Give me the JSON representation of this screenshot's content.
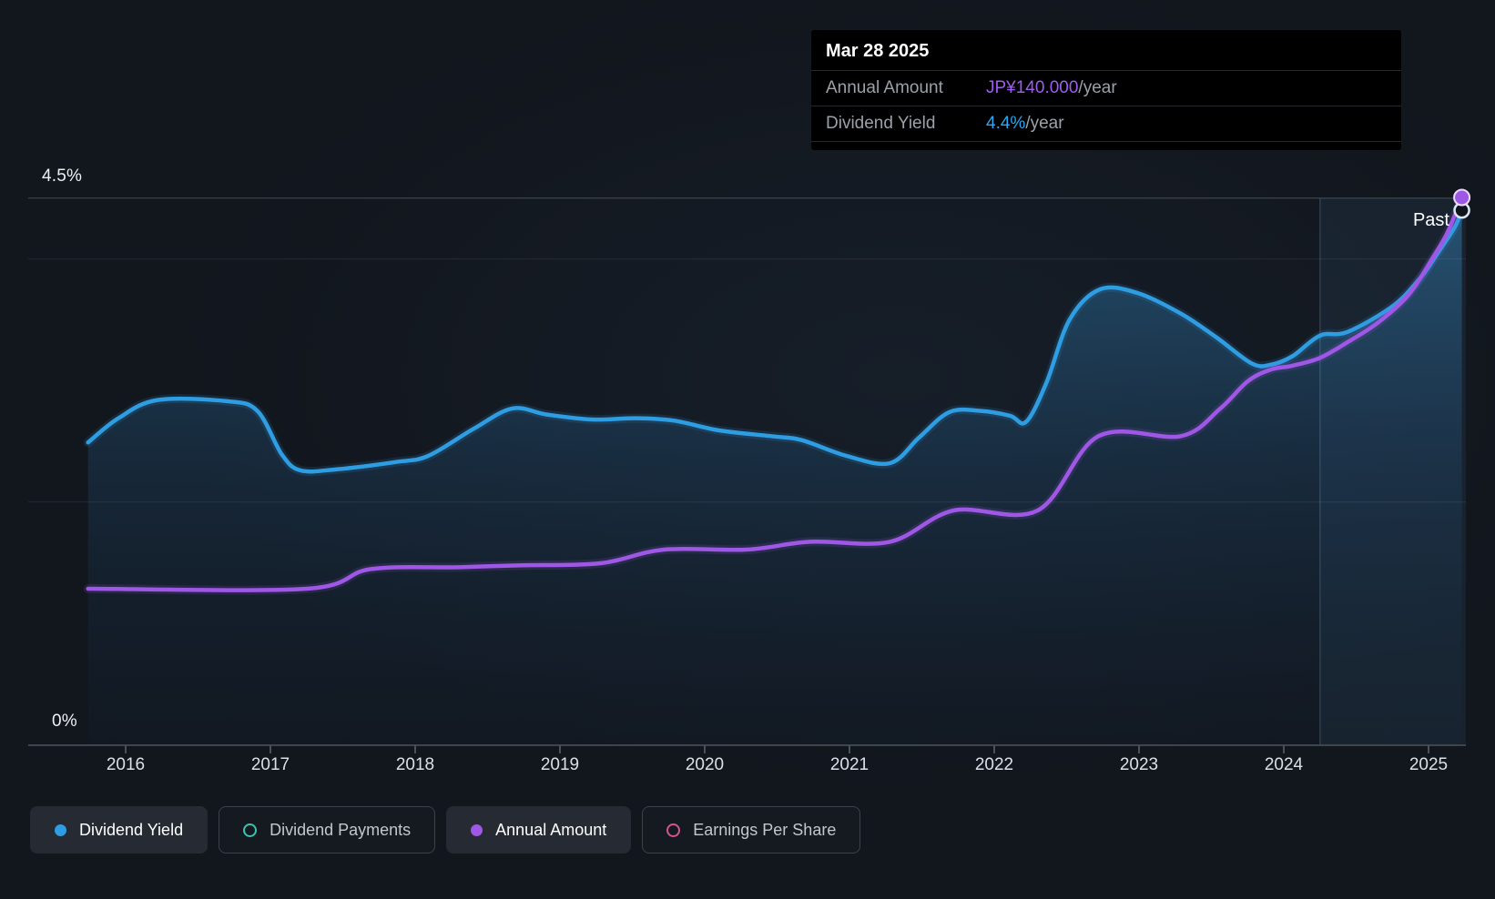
{
  "tooltip": {
    "date": "Mar 28 2025",
    "rows": [
      {
        "label": "Annual Amount",
        "value": "JP¥140.000",
        "suffix": "/year",
        "color": "#a05bf0"
      },
      {
        "label": "Dividend Yield",
        "value": "4.4%",
        "suffix": "/year",
        "color": "#2aa7f5"
      }
    ]
  },
  "chart_data": {
    "type": "area",
    "x_ticks": [
      "2016",
      "2017",
      "2018",
      "2019",
      "2020",
      "2021",
      "2022",
      "2023",
      "2024",
      "2025"
    ],
    "x_range": [
      2015.74,
      2025.28
    ],
    "y_axis": {
      "top_label": "4.5%",
      "zero_label": "0%",
      "unit": "%",
      "max_pct": 4.53,
      "gridlines_pct": [
        4.5,
        4.0,
        2.0,
        0
      ]
    },
    "past_label": "Past",
    "past_band_start_year": 2024.25,
    "series": [
      {
        "name": "Dividend Yield",
        "unit": "percent",
        "color": "#2f9de2",
        "points": [
          [
            2015.74,
            2.49
          ],
          [
            2015.95,
            2.69
          ],
          [
            2016.22,
            2.84
          ],
          [
            2016.7,
            2.83
          ],
          [
            2016.91,
            2.75
          ],
          [
            2017.08,
            2.39
          ],
          [
            2017.21,
            2.26
          ],
          [
            2017.46,
            2.27
          ],
          [
            2017.87,
            2.33
          ],
          [
            2018.09,
            2.38
          ],
          [
            2018.4,
            2.6
          ],
          [
            2018.67,
            2.77
          ],
          [
            2018.91,
            2.72
          ],
          [
            2019.22,
            2.68
          ],
          [
            2019.53,
            2.69
          ],
          [
            2019.79,
            2.67
          ],
          [
            2020.1,
            2.59
          ],
          [
            2020.48,
            2.54
          ],
          [
            2020.67,
            2.51
          ],
          [
            2020.98,
            2.38
          ],
          [
            2021.28,
            2.32
          ],
          [
            2021.48,
            2.53
          ],
          [
            2021.69,
            2.74
          ],
          [
            2021.91,
            2.75
          ],
          [
            2022.11,
            2.71
          ],
          [
            2022.22,
            2.66
          ],
          [
            2022.36,
            2.98
          ],
          [
            2022.52,
            3.5
          ],
          [
            2022.73,
            3.75
          ],
          [
            2022.99,
            3.72
          ],
          [
            2023.29,
            3.55
          ],
          [
            2023.54,
            3.35
          ],
          [
            2023.78,
            3.14
          ],
          [
            2023.91,
            3.13
          ],
          [
            2024.06,
            3.2
          ],
          [
            2024.25,
            3.37
          ],
          [
            2024.44,
            3.4
          ],
          [
            2024.75,
            3.61
          ],
          [
            2024.94,
            3.84
          ],
          [
            2025.07,
            4.06
          ],
          [
            2025.18,
            4.26
          ],
          [
            2025.23,
            4.4
          ]
        ]
      },
      {
        "name": "Annual Amount",
        "unit": "JPY",
        "color": "#9f57e6",
        "points": [
          [
            2015.74,
            40
          ],
          [
            2017.25,
            40
          ],
          [
            2017.69,
            45
          ],
          [
            2018.3,
            45.5
          ],
          [
            2018.74,
            46
          ],
          [
            2019.28,
            46.5
          ],
          [
            2019.72,
            50
          ],
          [
            2020.29,
            50
          ],
          [
            2020.73,
            52
          ],
          [
            2021.28,
            52
          ],
          [
            2021.72,
            60
          ],
          [
            2022.3,
            60
          ],
          [
            2022.72,
            79
          ],
          [
            2023.29,
            79
          ],
          [
            2023.56,
            86
          ],
          [
            2023.75,
            93
          ],
          [
            2023.91,
            96
          ],
          [
            2024.06,
            97
          ],
          [
            2024.25,
            99
          ],
          [
            2024.44,
            103
          ],
          [
            2024.65,
            108
          ],
          [
            2024.86,
            115
          ],
          [
            2025.02,
            124
          ],
          [
            2025.13,
            131
          ],
          [
            2025.23,
            140
          ]
        ]
      }
    ]
  },
  "legend": {
    "items": [
      {
        "label": "Dividend Yield",
        "marker": "dot",
        "color": "#2f9de2",
        "active": true
      },
      {
        "label": "Dividend Payments",
        "marker": "ring",
        "color": "#3dc2ad",
        "active": false
      },
      {
        "label": "Annual Amount",
        "marker": "dot",
        "color": "#9f57e6",
        "active": true
      },
      {
        "label": "Earnings Per Share",
        "marker": "ring",
        "color": "#d4548f",
        "active": false
      }
    ]
  }
}
